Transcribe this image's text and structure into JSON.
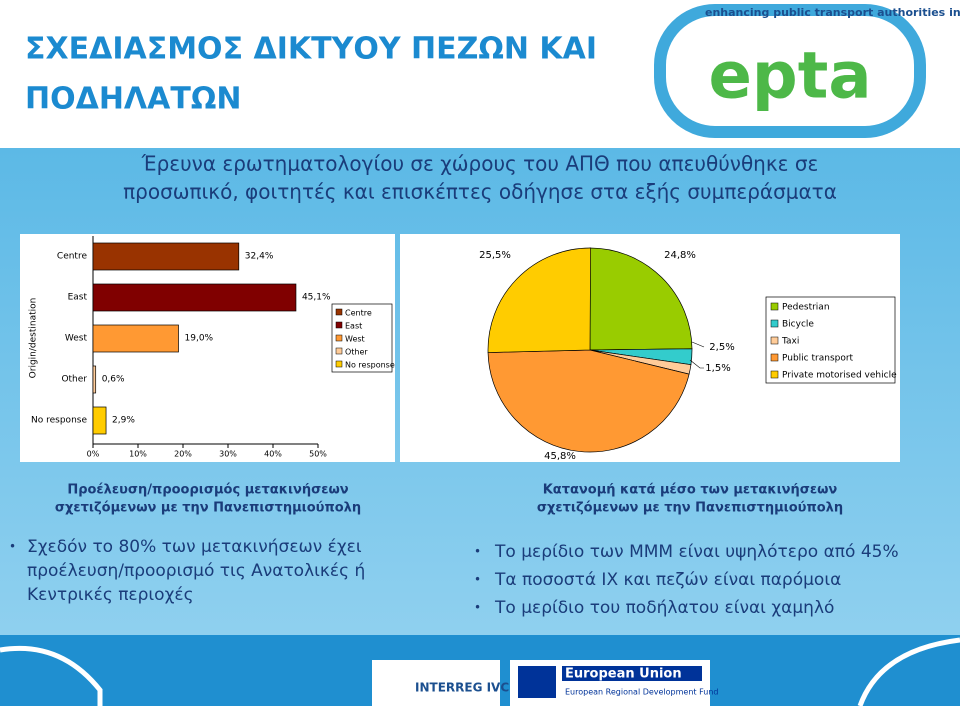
{
  "header": {
    "title_lines": [
      "ΣΧΕΔΙΑΣΜΟΣ ΔΙΚΤΥΟΥ ΠΕΖΩΝ ΚΑΙ",
      "ΠΟΔΗΛΑΤΩΝ"
    ],
    "tagline": "enhancing public transport authorities in Europe",
    "logo": "epta"
  },
  "subtitle_lines": [
    "Έρευνα ερωτηματολογίου σε χώρους του ΑΠΘ που απευθύνθηκε σε",
    "προσωπικό, φοιτητές και επισκέπτες οδήγησε στα εξής συμπεράσματα"
  ],
  "chart_data": [
    {
      "type": "hbar",
      "y_label": "Origin/destination",
      "categories": [
        "Centre",
        "East",
        "West",
        "Other",
        "No response"
      ],
      "values": [
        32.4,
        45.1,
        19.0,
        0.6,
        2.9
      ],
      "value_labels": [
        "32,4%",
        "45,1%",
        "19,0%",
        "0,6%",
        "2,9%"
      ],
      "colors": [
        "#993300",
        "#800000",
        "#ff9933",
        "#ffcc99",
        "#ffcc00"
      ],
      "xlim": [
        0,
        50
      ],
      "xticks": [
        {
          "value": 0,
          "label": "0%"
        },
        {
          "value": 10,
          "label": "10%"
        },
        {
          "value": 20,
          "label": "20%"
        },
        {
          "value": 30,
          "label": "30%"
        },
        {
          "value": 40,
          "label": "40%"
        },
        {
          "value": 50,
          "label": "50%"
        }
      ],
      "caption_lines": [
        "Προέλευση/προορισμός μετακινήσεων",
        "σχετιζόμενων με την Πανεπιστημιούπολη"
      ]
    },
    {
      "type": "pie",
      "categories": [
        "Pedestrian",
        "Bicycle",
        "Taxi",
        "Public transport",
        "Private motorised vehicle"
      ],
      "values": [
        24.8,
        2.5,
        1.5,
        45.8,
        25.5
      ],
      "value_labels": [
        "24,8%",
        "2,5%",
        "1,5%",
        "45,8%",
        "25,5%"
      ],
      "colors": [
        "#99cc00",
        "#33cccc",
        "#ffcc99",
        "#ff9933",
        "#ffcc00"
      ],
      "caption_lines": [
        "Κατανομή κατά μέσο των μετακινήσεων",
        "σχετιζόμενων με την Πανεπιστημιούπολη"
      ]
    }
  ],
  "bullets_left": [
    "Σχεδόν το 80% των μετακινήσεων έχει",
    "προέλευση/προορισμό τις Ανατολικές ή",
    "Κεντρικές περιοχές"
  ],
  "bullets_right": [
    "Το μερίδιο των ΜΜΜ είναι υψηλότερο από 45%",
    "Τα ποσοστά ΙΧ και πεζών είναι παρόμοια",
    "Το μερίδιο του ποδήλατου είναι χαμηλό"
  ],
  "footer": {
    "interreg": "INTERREG IVC",
    "eu": "European Union",
    "eu_fund": "European Regional Development Fund"
  }
}
